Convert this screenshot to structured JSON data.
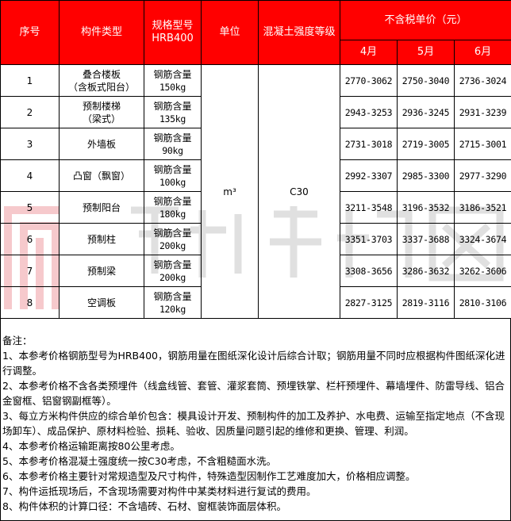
{
  "header": {
    "seq": "序号",
    "type": "构件类型",
    "spec": "规格型号",
    "spec_sub": "HRB400",
    "unit": "单位",
    "grade": "混凝土强度等级",
    "price": "不含税单价（元）",
    "months": [
      "4月",
      "5月",
      "6月"
    ]
  },
  "unit_value": "m³",
  "grade_value": "C30",
  "rows": [
    {
      "seq": "1",
      "type": "叠合楼板",
      "type2": "（含板式阳台）",
      "spec": "钢筋含量",
      "spec2": "150kg",
      "p": [
        "2770-3062",
        "2750-3040",
        "2736-3024"
      ]
    },
    {
      "seq": "2",
      "type": "预制楼梯",
      "type2": "（梁式）",
      "spec": "钢筋含量",
      "spec2": "135kg",
      "p": [
        "2943-3253",
        "2936-3245",
        "2931-3239"
      ]
    },
    {
      "seq": "3",
      "type": "外墙板",
      "type2": "",
      "spec": "钢筋含量",
      "spec2": "90kg",
      "p": [
        "2731-3018",
        "2719-3005",
        "2715-3001"
      ]
    },
    {
      "seq": "4",
      "type": "凸窗（飘窗）",
      "type2": "",
      "spec": "钢筋含量",
      "spec2": "100kg",
      "p": [
        "2992-3307",
        "2985-3300",
        "2977-3290"
      ]
    },
    {
      "seq": "5",
      "type": "预制阳台",
      "type2": "",
      "spec": "钢筋含量",
      "spec2": "180kg",
      "p": [
        "3211-3548",
        "3196-3532",
        "3186-3521"
      ]
    },
    {
      "seq": "6",
      "type": "预制柱",
      "type2": "",
      "spec": "钢筋含量",
      "spec2": "200kg",
      "p": [
        "3351-3703",
        "3337-3688",
        "3324-3674"
      ]
    },
    {
      "seq": "7",
      "type": "预制梁",
      "type2": "",
      "spec": "钢筋含量",
      "spec2": "200kg",
      "p": [
        "3308-3656",
        "3286-3632",
        "3262-3606"
      ]
    },
    {
      "seq": "8",
      "type": "空调板",
      "type2": "",
      "spec": "钢筋含量",
      "spec2": "120kg",
      "p": [
        "2827-3125",
        "2819-3116",
        "2810-3106"
      ]
    }
  ],
  "notes": {
    "title": "备注：",
    "items": [
      "1、本参考价格钢筋型号为HRB400，钢筋用量在图纸深化设计后综合计取；钢筋用量不同时应根据构件图纸深化进行调整。",
      "2、本参考价格不含各类预埋件（线盒线管、套管、灌浆套筒、预埋铁掌、栏杆预埋件、幕墙埋件、防雷导线、铝合金窗框、铝窗钢副框等）。",
      "3、每立方米构件供应的综合单价包含：模具设计开发、预制构件的加工及养护、水电费、运输至指定地点（不含现场卸车）、成品保护、原材料检验、损耗、验收、因质量问题引起的维修和更换、管理、利润。",
      "4、本参考价格运输距离按80公里考虑。",
      "5、本参考价格混凝土强度统一按C30考虑，不含粗糙面水洗。",
      "6、本参考价格主要针对常规造型及尺寸构件，特殊造型因制作工艺难度加大，价格相应调整。",
      "7、构件运抵现场后，不含现场需要对构件中某类材料进行复试的费用。",
      "8、构件体积的计算口径：不含墙砖、石材、窗框装饰面层体积。"
    ]
  },
  "watermark": {
    "cn": "预制建筑网",
    "en": "precast.com.cn",
    "logo_color": "#f4b8bc",
    "text_color": "#c8c8c8"
  },
  "colors": {
    "header_bg": "#ff0000",
    "header_text": "#ffffff"
  }
}
